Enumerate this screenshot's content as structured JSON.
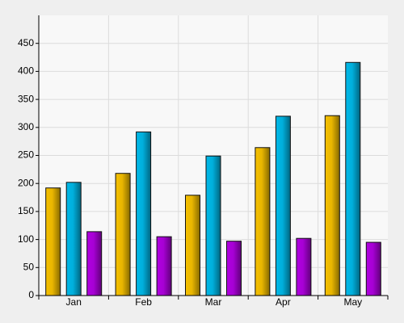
{
  "chart_data": {
    "type": "bar",
    "categories": [
      "Jan",
      "Feb",
      "Mar",
      "Apr",
      "May"
    ],
    "series": [
      {
        "color": "#f5c000",
        "values": [
          192,
          218,
          179,
          264,
          321
        ]
      },
      {
        "color": "#00b8e8",
        "values": [
          202,
          292,
          249,
          320,
          416
        ]
      },
      {
        "color": "#b000e0",
        "values": [
          114,
          105,
          97,
          102,
          95
        ]
      }
    ],
    "ylim": [
      0,
      500
    ],
    "yticks": [
      0,
      50,
      100,
      150,
      200,
      250,
      300,
      350,
      400,
      450
    ],
    "grid": true
  }
}
